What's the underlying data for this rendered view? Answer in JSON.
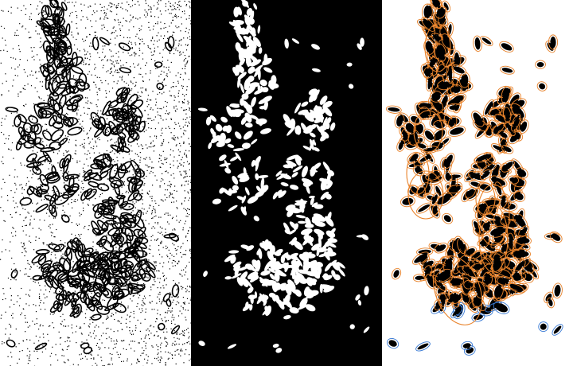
{
  "figure": {
    "panels": [
      {
        "id": "noisy",
        "description_name": "noisy-input-panel",
        "background": "#ffffff",
        "mark_color": "#000000"
      },
      {
        "id": "binary",
        "description_name": "binary-mask-panel",
        "background": "#000000",
        "mark_color": "#ffffff"
      },
      {
        "id": "detected",
        "description_name": "detection-overlay-panel",
        "background": "#ffffff",
        "mark_color": "#000000",
        "ellipse_color_primary": "#e8822a",
        "ellipse_color_secondary": "#3a7bd5"
      }
    ]
  }
}
